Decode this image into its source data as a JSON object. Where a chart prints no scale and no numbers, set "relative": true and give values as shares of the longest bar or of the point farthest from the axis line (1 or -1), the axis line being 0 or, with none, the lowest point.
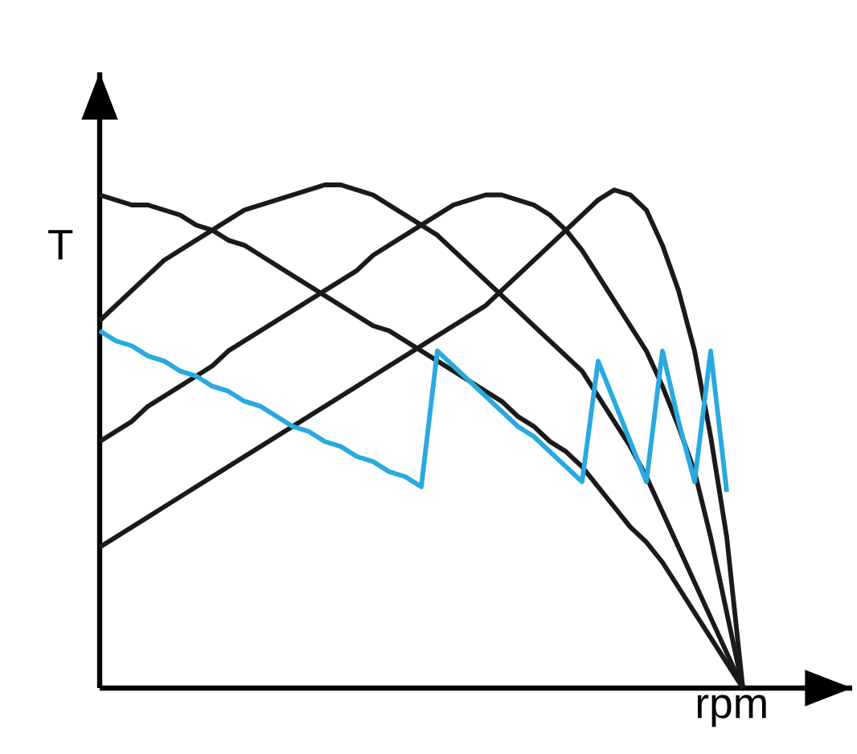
{
  "chart_data": {
    "type": "line",
    "relative": true,
    "xlabel": "rpm",
    "ylabel": "T",
    "categories": [
      null,
      null,
      null,
      null,
      null,
      null,
      null,
      null,
      null,
      null,
      null,
      null,
      null,
      null,
      null,
      null,
      null,
      null,
      null,
      null,
      null,
      null,
      null,
      null,
      null,
      null,
      null,
      null,
      null,
      null,
      null,
      null,
      null,
      null,
      null,
      null,
      null,
      null,
      null,
      null,
      null
    ],
    "series": [
      {
        "color": "#1a1a1a",
        "values": [
          0.98,
          0.97,
          0.96,
          0.96,
          0.95,
          0.94,
          0.92,
          0.91,
          0.89,
          0.88,
          0.86,
          0.84,
          0.82,
          0.8,
          0.78,
          0.76,
          0.74,
          0.72,
          0.71,
          0.69,
          0.67,
          0.65,
          0.63,
          0.61,
          0.59,
          0.57,
          0.54,
          0.52,
          0.49,
          0.47,
          0.44,
          0.4,
          0.36,
          0.32,
          0.29,
          0.25,
          0.2,
          0.15,
          0.1,
          0.05,
          0
        ]
      },
      {
        "color": "#1a1a1a",
        "values": [
          0.73,
          0.76,
          0.79,
          0.82,
          0.85,
          0.87,
          0.89,
          0.91,
          0.93,
          0.95,
          0.96,
          0.97,
          0.98,
          0.99,
          1.0,
          1.0,
          0.99,
          0.98,
          0.96,
          0.94,
          0.92,
          0.9,
          0.87,
          0.84,
          0.81,
          0.78,
          0.75,
          0.72,
          0.69,
          0.66,
          0.63,
          0.58,
          0.53,
          0.48,
          0.42,
          0.35,
          0.28,
          0.21,
          0.14,
          0.07,
          0
        ]
      },
      {
        "color": "#1a1a1a",
        "values": [
          0.49,
          0.51,
          0.53,
          0.56,
          0.58,
          0.6,
          0.62,
          0.64,
          0.67,
          0.69,
          0.71,
          0.73,
          0.75,
          0.77,
          0.79,
          0.81,
          0.83,
          0.86,
          0.88,
          0.9,
          0.92,
          0.94,
          0.96,
          0.97,
          0.98,
          0.98,
          0.97,
          0.96,
          0.94,
          0.91,
          0.87,
          0.82,
          0.77,
          0.72,
          0.67,
          0.6,
          0.52,
          0.43,
          0.3,
          0.15,
          0
        ]
      },
      {
        "color": "#1a1a1a",
        "values": [
          0.28,
          0.3,
          0.32,
          0.34,
          0.36,
          0.38,
          0.4,
          0.42,
          0.44,
          0.46,
          0.48,
          0.5,
          0.52,
          0.54,
          0.56,
          0.58,
          0.6,
          0.62,
          0.64,
          0.66,
          0.68,
          0.7,
          0.72,
          0.74,
          0.76,
          0.79,
          0.82,
          0.85,
          0.88,
          0.91,
          0.94,
          0.97,
          0.99,
          0.98,
          0.95,
          0.88,
          0.79,
          0.67,
          0.5,
          0.3,
          0
        ]
      },
      {
        "color": "#29a9e0",
        "values": [
          0.71,
          0.69,
          0.68,
          0.66,
          0.65,
          0.63,
          0.62,
          0.6,
          0.59,
          0.57,
          0.56,
          0.54,
          0.52,
          0.51,
          0.49,
          0.48,
          0.46,
          0.45,
          0.43,
          0.42,
          0.4,
          0.67,
          0.64,
          0.61,
          0.58,
          0.55,
          0.52,
          0.5,
          0.47,
          0.44,
          0.41,
          0.65,
          0.57,
          0.49,
          0.41,
          0.67,
          0.53,
          0.41,
          0.67,
          0.39,
          null
        ]
      }
    ]
  }
}
